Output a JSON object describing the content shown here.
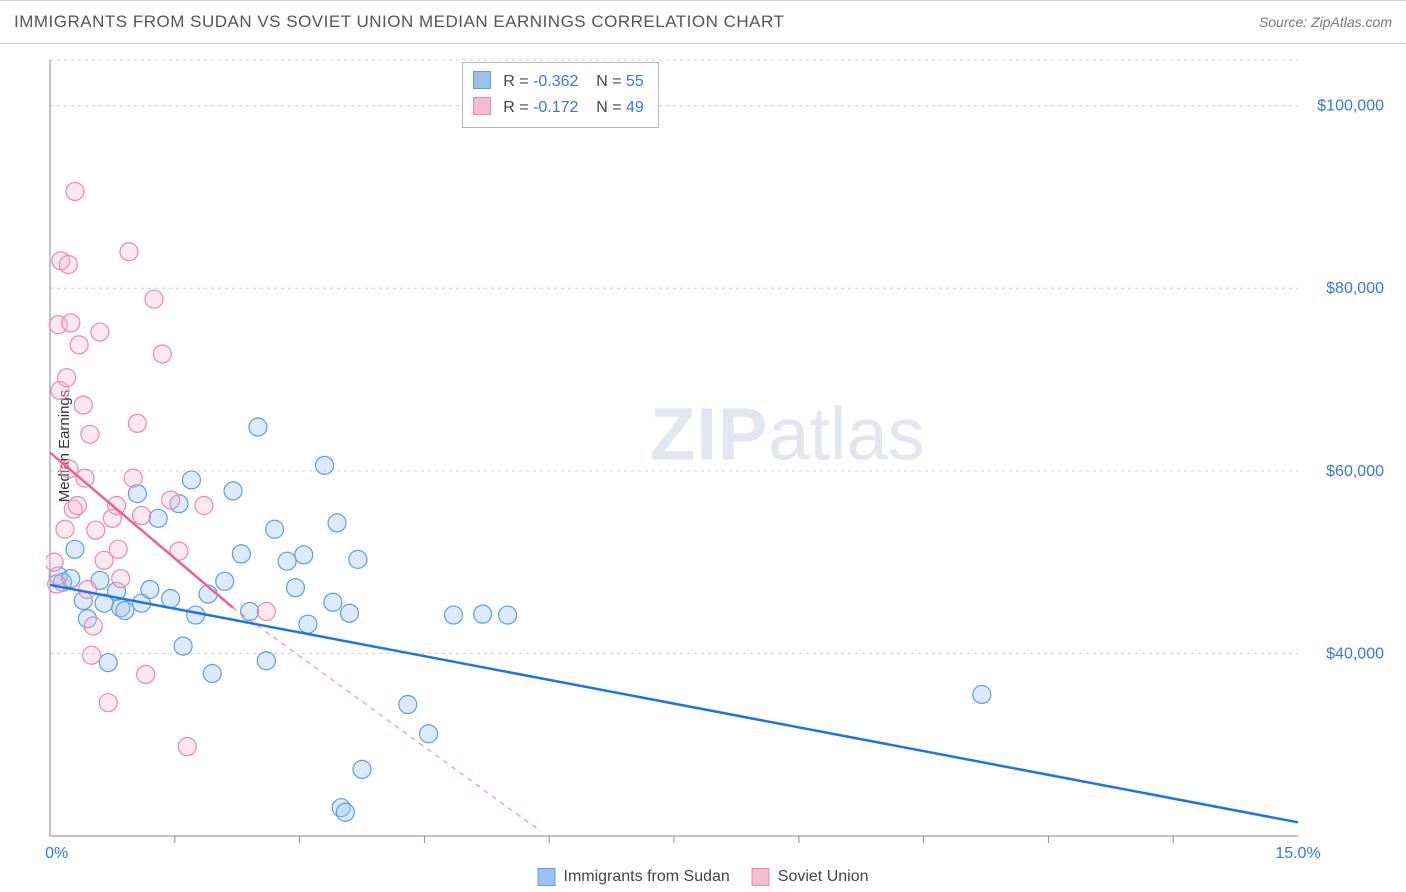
{
  "title": "IMMIGRANTS FROM SUDAN VS SOVIET UNION MEDIAN EARNINGS CORRELATION CHART",
  "source_prefix": "Source: ",
  "source_name": "ZipAtlas.com",
  "watermark_zip": "ZIP",
  "watermark_atlas": "atlas",
  "y_axis_label": "Median Earnings",
  "chart": {
    "type": "scatter",
    "xlim": [
      0,
      15
    ],
    "ylim": [
      20000,
      105000
    ],
    "x_ticks_minor": [
      1.5,
      3.0,
      4.5,
      6.0,
      7.5,
      9.0,
      10.5,
      12.0,
      13.5
    ],
    "x_tick_labels": [
      {
        "v": 0,
        "label": "0.0%"
      },
      {
        "v": 15,
        "label": "15.0%"
      }
    ],
    "y_grid": [
      40000,
      60000,
      80000,
      100000,
      105000
    ],
    "y_tick_labels": [
      {
        "v": 40000,
        "label": "$40,000"
      },
      {
        "v": 60000,
        "label": "$60,000"
      },
      {
        "v": 80000,
        "label": "$80,000"
      },
      {
        "v": 100000,
        "label": "$100,000"
      }
    ],
    "background_color": "#ffffff",
    "grid_color": "#cccccc",
    "axis_color": "#888888",
    "tick_label_color": "#3a77d6",
    "marker_radius": 9,
    "marker_fill_opacity": 0.35,
    "series": [
      {
        "key": "sudan",
        "name": "Immigrants from Sudan",
        "fill": "#9cc3ee",
        "stroke": "#5d9de0",
        "trend_color": "#1e74e6",
        "R": "-0.362",
        "N": "55",
        "trend": {
          "x1": 0,
          "y1": 47500,
          "x2": 15,
          "y2": 21500,
          "dash_after_x": 15
        },
        "points": [
          [
            0.1,
            48500
          ],
          [
            0.15,
            47800
          ],
          [
            0.25,
            48200
          ],
          [
            0.3,
            51400
          ],
          [
            0.4,
            45800
          ],
          [
            0.45,
            43800
          ],
          [
            0.6,
            48000
          ],
          [
            0.65,
            45500
          ],
          [
            0.7,
            39000
          ],
          [
            0.8,
            46800
          ],
          [
            0.85,
            45000
          ],
          [
            0.9,
            44700
          ],
          [
            1.05,
            57500
          ],
          [
            1.1,
            45500
          ],
          [
            1.2,
            47000
          ],
          [
            1.3,
            54800
          ],
          [
            1.45,
            46000
          ],
          [
            1.55,
            56400
          ],
          [
            1.6,
            40800
          ],
          [
            1.7,
            59000
          ],
          [
            1.75,
            44200
          ],
          [
            1.9,
            46500
          ],
          [
            1.95,
            37800
          ],
          [
            2.1,
            47900
          ],
          [
            2.2,
            57800
          ],
          [
            2.3,
            50900
          ],
          [
            2.4,
            44600
          ],
          [
            2.5,
            64800
          ],
          [
            2.6,
            39200
          ],
          [
            2.7,
            53600
          ],
          [
            2.85,
            50100
          ],
          [
            2.95,
            47200
          ],
          [
            3.05,
            50800
          ],
          [
            3.1,
            43200
          ],
          [
            3.3,
            60600
          ],
          [
            3.4,
            45600
          ],
          [
            3.45,
            54300
          ],
          [
            3.5,
            23100
          ],
          [
            3.55,
            22600
          ],
          [
            3.6,
            44400
          ],
          [
            3.7,
            50300
          ],
          [
            3.75,
            27300
          ],
          [
            4.3,
            34400
          ],
          [
            4.55,
            31200
          ],
          [
            4.85,
            44200
          ],
          [
            5.2,
            44300
          ],
          [
            5.5,
            44200
          ],
          [
            11.2,
            35500
          ]
        ]
      },
      {
        "key": "soviet",
        "name": "Soviet Union",
        "fill": "#f6bdd0",
        "stroke": "#ea88ad",
        "trend_color": "#ed6291",
        "R": "-0.172",
        "N": "49",
        "trend": {
          "x1": 0,
          "y1": 62000,
          "x2": 2.2,
          "y2": 45000,
          "dash_after_x": 2.2
        },
        "trend_dash_end": {
          "x": 5.9,
          "y": 20500
        },
        "points": [
          [
            0.05,
            50000
          ],
          [
            0.08,
            47600
          ],
          [
            0.1,
            76000
          ],
          [
            0.12,
            68800
          ],
          [
            0.13,
            83000
          ],
          [
            0.18,
            53600
          ],
          [
            0.2,
            70200
          ],
          [
            0.22,
            82600
          ],
          [
            0.23,
            60200
          ],
          [
            0.25,
            76200
          ],
          [
            0.28,
            55800
          ],
          [
            0.3,
            90600
          ],
          [
            0.33,
            56200
          ],
          [
            0.35,
            73800
          ],
          [
            0.4,
            67200
          ],
          [
            0.42,
            59200
          ],
          [
            0.45,
            47000
          ],
          [
            0.48,
            64000
          ],
          [
            0.5,
            39800
          ],
          [
            0.52,
            43000
          ],
          [
            0.55,
            53500
          ],
          [
            0.6,
            75200
          ],
          [
            0.65,
            50200
          ],
          [
            0.7,
            34600
          ],
          [
            0.75,
            54800
          ],
          [
            0.8,
            56200
          ],
          [
            0.82,
            51400
          ],
          [
            0.85,
            48200
          ],
          [
            0.95,
            84000
          ],
          [
            1.0,
            59200
          ],
          [
            1.05,
            65200
          ],
          [
            1.1,
            55100
          ],
          [
            1.15,
            37700
          ],
          [
            1.25,
            78800
          ],
          [
            1.35,
            72800
          ],
          [
            1.45,
            56800
          ],
          [
            1.55,
            51200
          ],
          [
            1.65,
            29800
          ],
          [
            1.85,
            56200
          ],
          [
            2.6,
            44600
          ]
        ]
      }
    ]
  },
  "stat_box": {
    "rows": [
      {
        "series": "sudan",
        "r_label": "R =",
        "n_label": "N ="
      },
      {
        "series": "soviet",
        "r_label": "R =",
        "n_label": "N ="
      }
    ]
  }
}
